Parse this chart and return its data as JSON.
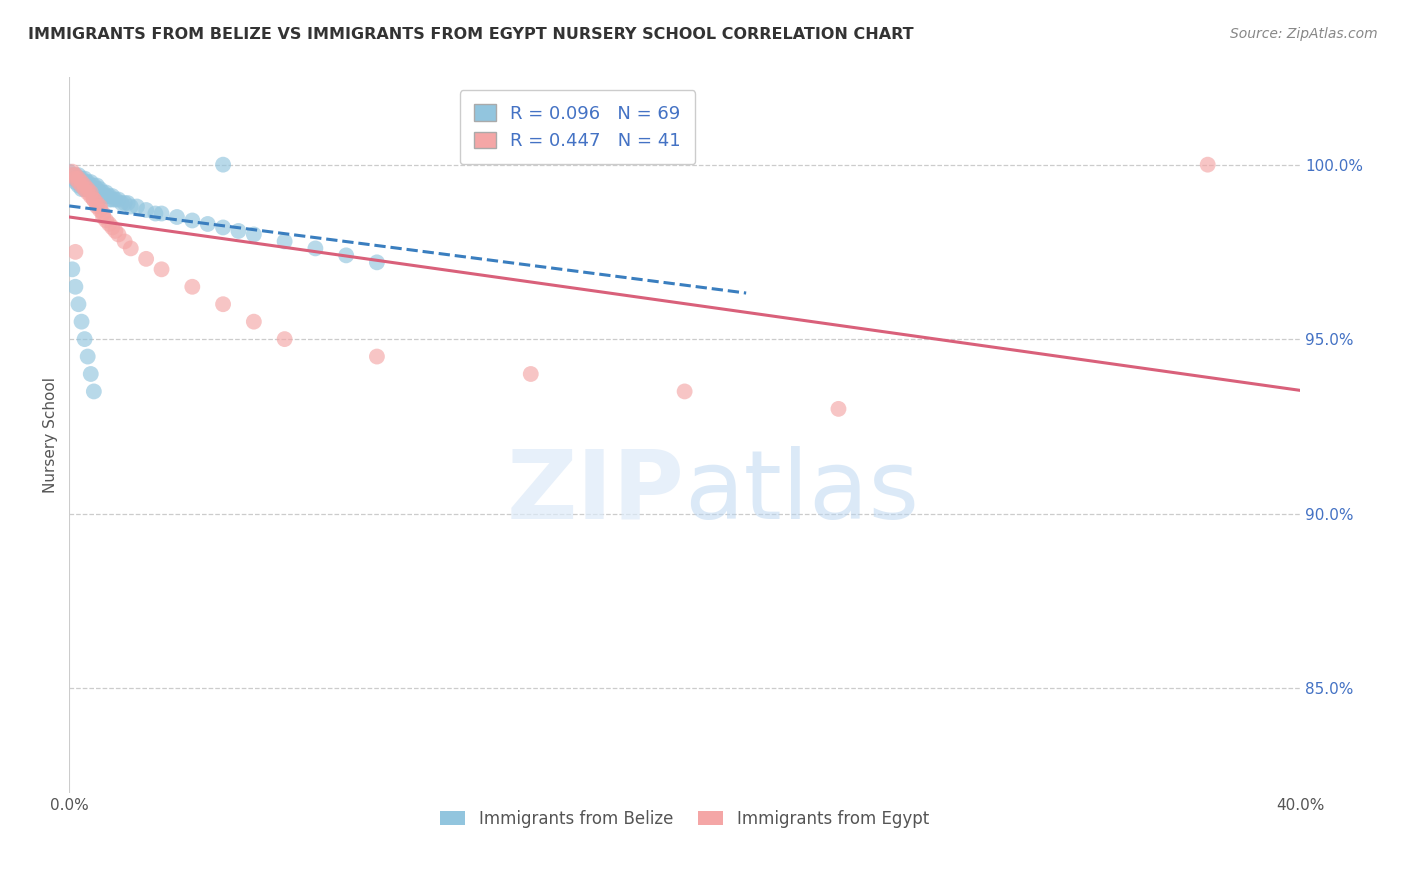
{
  "title": "IMMIGRANTS FROM BELIZE VS IMMIGRANTS FROM EGYPT NURSERY SCHOOL CORRELATION CHART",
  "source": "Source: ZipAtlas.com",
  "ylabel": "Nursery School",
  "ytick_labels": [
    "85.0%",
    "90.0%",
    "95.0%",
    "100.0%"
  ],
  "ytick_values": [
    0.85,
    0.9,
    0.95,
    1.0
  ],
  "xlim": [
    0.0,
    0.4
  ],
  "ylim": [
    0.82,
    1.025
  ],
  "belize_color": "#92c5de",
  "egypt_color": "#f4a6a6",
  "belize_line_color": "#3a7ebf",
  "egypt_line_color": "#d9607a",
  "legend_label_belize": "Immigrants from Belize",
  "legend_label_egypt": "Immigrants from Egypt",
  "R_belize": 0.096,
  "N_belize": 69,
  "R_egypt": 0.447,
  "N_egypt": 41,
  "belize_x": [
    0.0,
    0.001,
    0.001,
    0.002,
    0.002,
    0.002,
    0.003,
    0.003,
    0.003,
    0.003,
    0.004,
    0.004,
    0.004,
    0.004,
    0.005,
    0.005,
    0.005,
    0.005,
    0.006,
    0.006,
    0.006,
    0.007,
    0.007,
    0.007,
    0.008,
    0.008,
    0.008,
    0.009,
    0.009,
    0.009,
    0.01,
    0.01,
    0.011,
    0.011,
    0.012,
    0.012,
    0.013,
    0.013,
    0.014,
    0.014,
    0.015,
    0.016,
    0.017,
    0.018,
    0.019,
    0.02,
    0.022,
    0.025,
    0.028,
    0.03,
    0.035,
    0.04,
    0.045,
    0.05,
    0.055,
    0.06,
    0.07,
    0.08,
    0.09,
    0.1,
    0.001,
    0.002,
    0.003,
    0.004,
    0.005,
    0.006,
    0.007,
    0.008,
    0.05
  ],
  "belize_y": [
    0.998,
    0.997,
    0.996,
    0.997,
    0.996,
    0.995,
    0.997,
    0.996,
    0.995,
    0.994,
    0.996,
    0.995,
    0.994,
    0.993,
    0.996,
    0.995,
    0.994,
    0.993,
    0.995,
    0.994,
    0.993,
    0.995,
    0.994,
    0.993,
    0.994,
    0.993,
    0.992,
    0.994,
    0.993,
    0.992,
    0.993,
    0.992,
    0.992,
    0.991,
    0.992,
    0.991,
    0.991,
    0.99,
    0.991,
    0.99,
    0.99,
    0.99,
    0.989,
    0.989,
    0.989,
    0.988,
    0.988,
    0.987,
    0.986,
    0.986,
    0.985,
    0.984,
    0.983,
    0.982,
    0.981,
    0.98,
    0.978,
    0.976,
    0.974,
    0.972,
    0.97,
    0.965,
    0.96,
    0.955,
    0.95,
    0.945,
    0.94,
    0.935,
    1.0
  ],
  "egypt_x": [
    0.001,
    0.001,
    0.002,
    0.002,
    0.003,
    0.003,
    0.004,
    0.004,
    0.005,
    0.005,
    0.006,
    0.006,
    0.007,
    0.007,
    0.008,
    0.008,
    0.009,
    0.009,
    0.01,
    0.01,
    0.011,
    0.011,
    0.012,
    0.013,
    0.014,
    0.015,
    0.016,
    0.018,
    0.02,
    0.025,
    0.03,
    0.04,
    0.05,
    0.06,
    0.07,
    0.1,
    0.15,
    0.2,
    0.25,
    0.37,
    0.002
  ],
  "egypt_y": [
    0.998,
    0.997,
    0.997,
    0.996,
    0.996,
    0.995,
    0.995,
    0.994,
    0.994,
    0.993,
    0.993,
    0.992,
    0.992,
    0.991,
    0.99,
    0.99,
    0.989,
    0.988,
    0.988,
    0.987,
    0.986,
    0.985,
    0.984,
    0.983,
    0.982,
    0.981,
    0.98,
    0.978,
    0.976,
    0.973,
    0.97,
    0.965,
    0.96,
    0.955,
    0.95,
    0.945,
    0.94,
    0.935,
    0.93,
    1.0,
    0.975
  ]
}
